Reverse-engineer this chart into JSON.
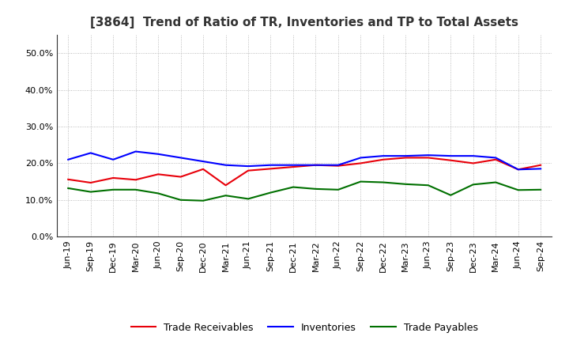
{
  "title": "[3864]  Trend of Ratio of TR, Inventories and TP to Total Assets",
  "labels": [
    "Jun-19",
    "Sep-19",
    "Dec-19",
    "Mar-20",
    "Jun-20",
    "Sep-20",
    "Dec-20",
    "Mar-21",
    "Jun-21",
    "Sep-21",
    "Dec-21",
    "Mar-22",
    "Jun-22",
    "Sep-22",
    "Dec-22",
    "Mar-23",
    "Jun-23",
    "Sep-23",
    "Dec-23",
    "Mar-24",
    "Jun-24",
    "Sep-24"
  ],
  "trade_receivables": [
    0.156,
    0.147,
    0.16,
    0.155,
    0.17,
    0.163,
    0.184,
    0.14,
    0.18,
    0.185,
    0.19,
    0.195,
    0.193,
    0.2,
    0.21,
    0.215,
    0.215,
    0.208,
    0.2,
    0.21,
    0.183,
    0.195
  ],
  "inventories": [
    0.21,
    0.228,
    0.21,
    0.232,
    0.225,
    0.215,
    0.205,
    0.195,
    0.192,
    0.195,
    0.195,
    0.195,
    0.195,
    0.215,
    0.22,
    0.22,
    0.222,
    0.22,
    0.22,
    0.215,
    0.183,
    0.185
  ],
  "trade_payables": [
    0.132,
    0.122,
    0.128,
    0.128,
    0.118,
    0.1,
    0.098,
    0.112,
    0.103,
    0.12,
    0.135,
    0.13,
    0.128,
    0.15,
    0.148,
    0.143,
    0.14,
    0.113,
    0.142,
    0.148,
    0.127,
    0.128
  ],
  "tr_color": "#e8000a",
  "inv_color": "#0000ff",
  "tp_color": "#007000",
  "ylim": [
    0.0,
    0.55
  ],
  "yticks": [
    0.0,
    0.1,
    0.2,
    0.3,
    0.4,
    0.5
  ],
  "background_color": "#ffffff",
  "grid_color": "#aaaaaa",
  "line_width": 1.5,
  "title_fontsize": 11,
  "tick_fontsize": 8,
  "legend_fontsize": 9
}
